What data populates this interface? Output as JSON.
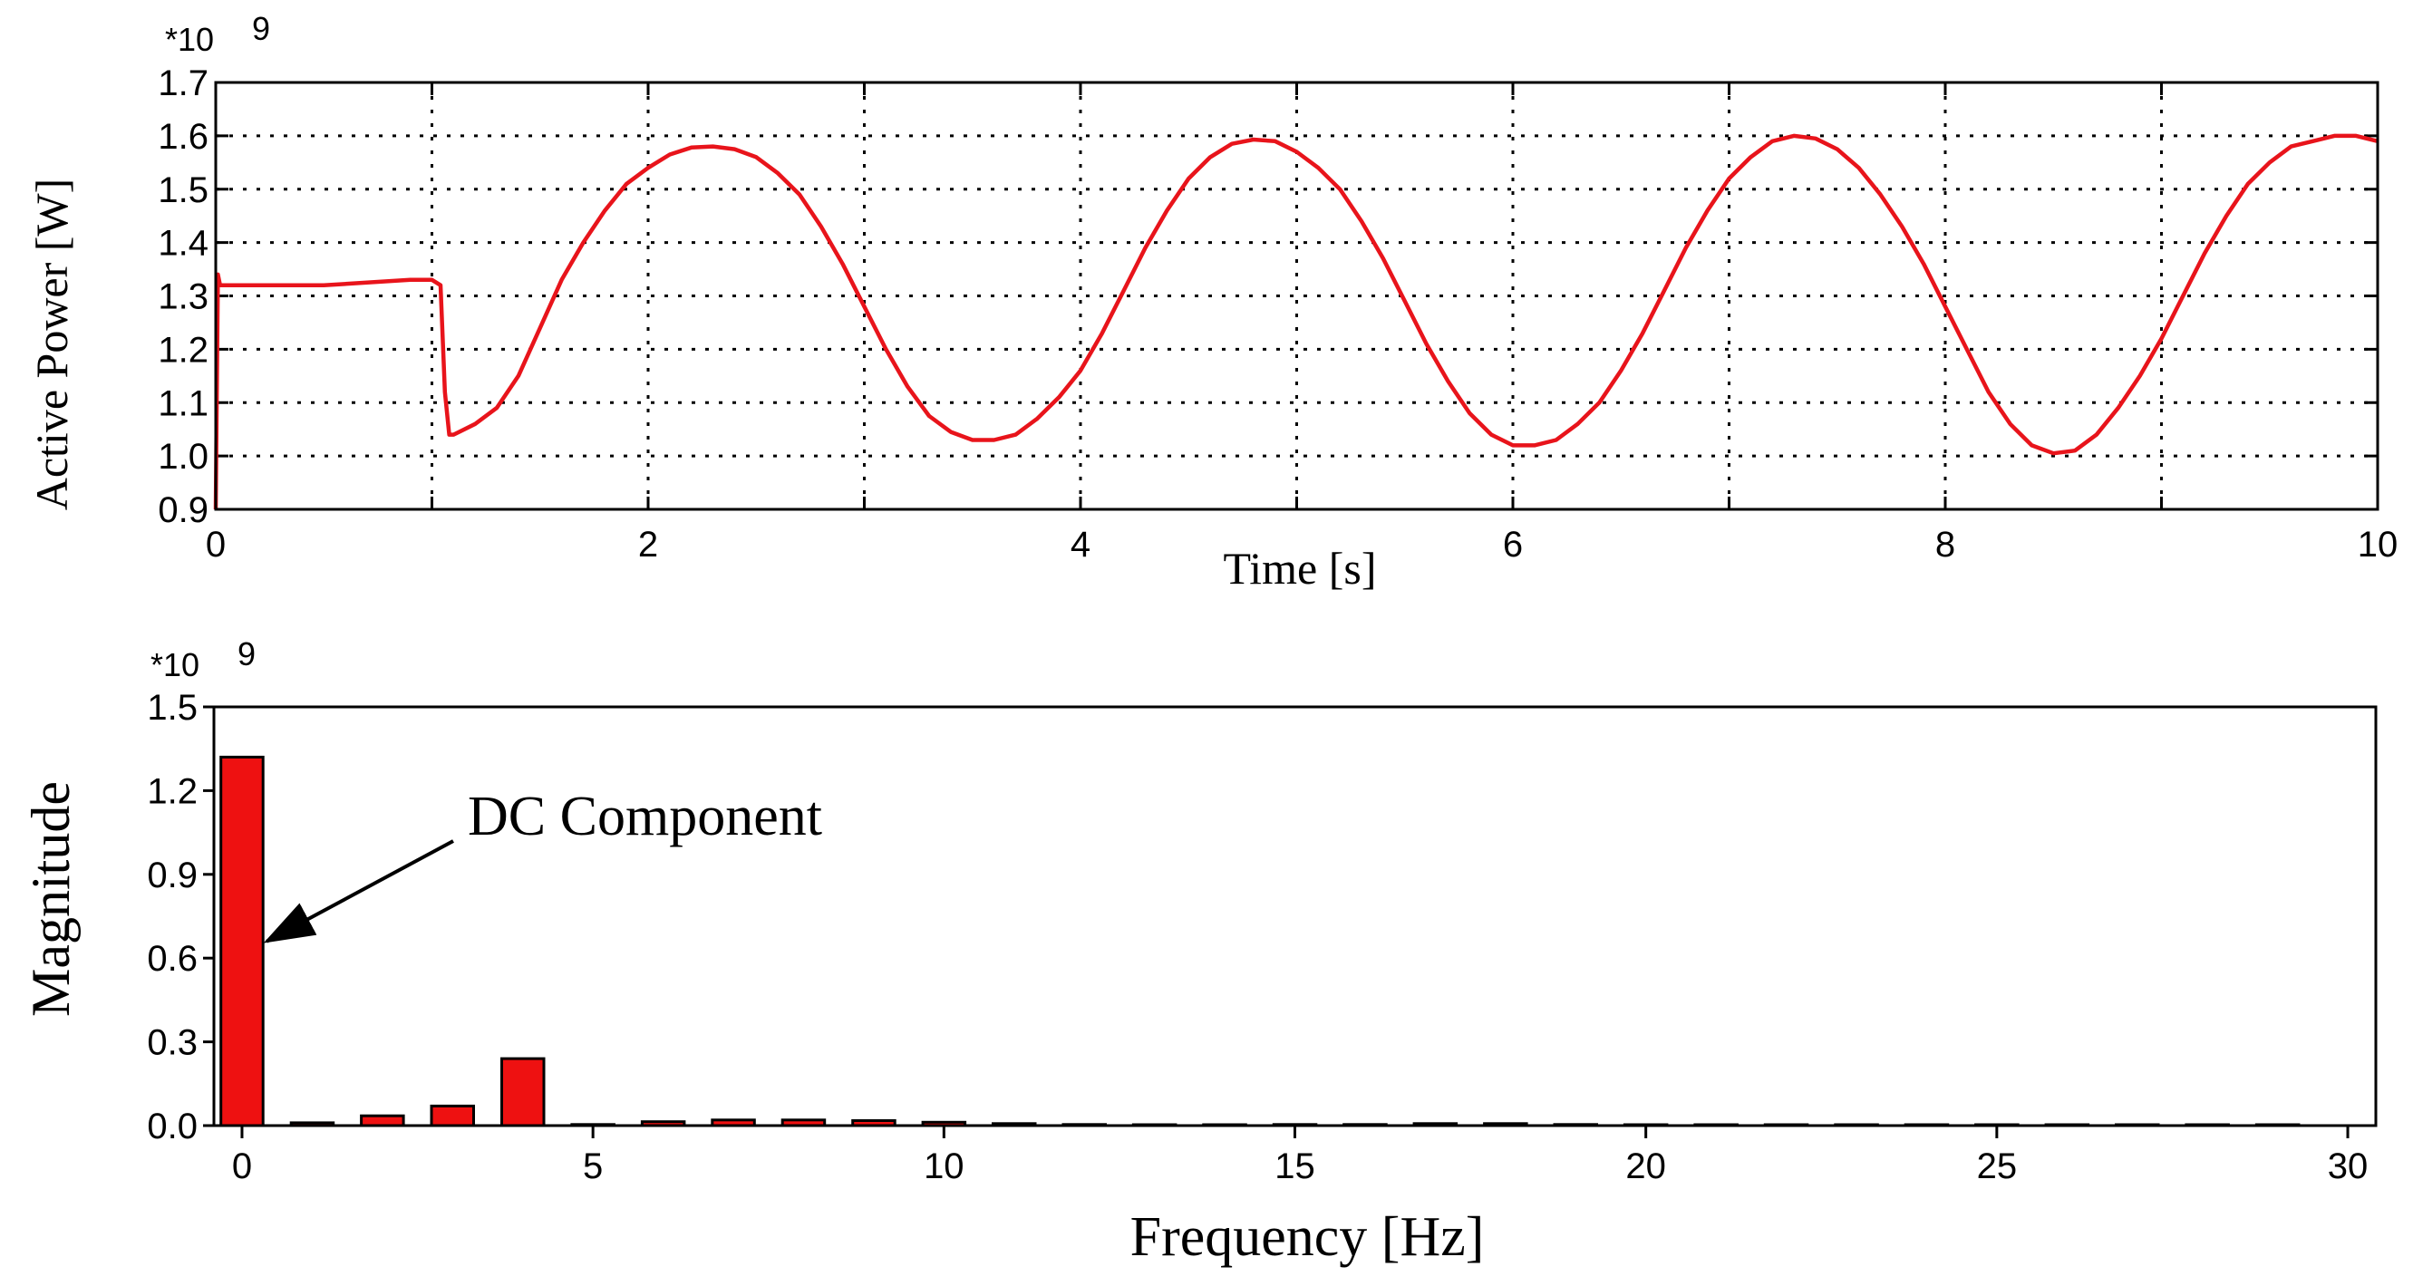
{
  "chart_data": [
    {
      "type": "line",
      "exponent_label": "*10",
      "exponent_power": "9",
      "xlabel": "Time [s]",
      "ylabel": "Active Power [W]",
      "xlim": [
        0,
        10
      ],
      "ylim": [
        0.9,
        1.7
      ],
      "xticks": [
        0,
        2,
        4,
        6,
        8,
        10
      ],
      "xtick_labels": [
        "0",
        "2",
        "4",
        "6",
        "8",
        "10"
      ],
      "x_minor_ticks": [
        1,
        3,
        5,
        7,
        9
      ],
      "yticks": [
        0.9,
        1.0,
        1.1,
        1.2,
        1.3,
        1.4,
        1.5,
        1.6,
        1.7
      ],
      "ytick_labels": [
        "0.9",
        "1.0",
        "1.1",
        "1.2",
        "1.3",
        "1.4",
        "1.5",
        "1.6",
        "1.7"
      ],
      "grid": true,
      "colors": {
        "series": "#e8141b"
      },
      "series": [
        {
          "x": [
            0.0,
            0.01,
            0.02,
            0.05,
            0.1,
            0.3,
            0.5,
            0.7,
            0.9,
            1.0,
            1.04,
            1.06,
            1.08,
            1.1,
            1.2,
            1.3,
            1.4,
            1.5,
            1.6,
            1.7,
            1.8,
            1.9,
            2.0,
            2.1,
            2.2,
            2.3,
            2.4,
            2.5,
            2.6,
            2.7,
            2.8,
            2.9,
            3.0,
            3.1,
            3.2,
            3.3,
            3.4,
            3.5,
            3.6,
            3.7,
            3.8,
            3.9,
            4.0,
            4.1,
            4.2,
            4.3,
            4.4,
            4.5,
            4.6,
            4.7,
            4.8,
            4.9,
            5.0,
            5.1,
            5.2,
            5.3,
            5.4,
            5.5,
            5.6,
            5.7,
            5.8,
            5.9,
            6.0,
            6.1,
            6.2,
            6.3,
            6.4,
            6.5,
            6.6,
            6.7,
            6.8,
            6.9,
            7.0,
            7.1,
            7.2,
            7.3,
            7.4,
            7.5,
            7.6,
            7.7,
            7.8,
            7.9,
            8.0,
            8.1,
            8.2,
            8.3,
            8.4,
            8.5,
            8.6,
            8.7,
            8.8,
            8.9,
            9.0,
            9.1,
            9.2,
            9.3,
            9.4,
            9.5,
            9.6,
            9.7,
            9.8,
            9.9,
            10.0
          ],
          "y": [
            0.9,
            1.34,
            1.32,
            1.32,
            1.32,
            1.32,
            1.32,
            1.325,
            1.33,
            1.33,
            1.32,
            1.12,
            1.04,
            1.04,
            1.06,
            1.09,
            1.15,
            1.24,
            1.33,
            1.4,
            1.46,
            1.51,
            1.54,
            1.565,
            1.578,
            1.58,
            1.575,
            1.56,
            1.53,
            1.49,
            1.43,
            1.36,
            1.28,
            1.2,
            1.13,
            1.075,
            1.045,
            1.03,
            1.03,
            1.04,
            1.07,
            1.11,
            1.16,
            1.23,
            1.31,
            1.39,
            1.46,
            1.52,
            1.56,
            1.585,
            1.593,
            1.59,
            1.57,
            1.54,
            1.5,
            1.44,
            1.37,
            1.29,
            1.21,
            1.14,
            1.08,
            1.04,
            1.02,
            1.02,
            1.03,
            1.06,
            1.1,
            1.16,
            1.23,
            1.31,
            1.39,
            1.46,
            1.52,
            1.56,
            1.59,
            1.6,
            1.595,
            1.575,
            1.54,
            1.49,
            1.43,
            1.36,
            1.28,
            1.2,
            1.12,
            1.06,
            1.02,
            1.005,
            1.01,
            1.04,
            1.09,
            1.15,
            1.22,
            1.3,
            1.38,
            1.45,
            1.51,
            1.55,
            1.58,
            1.59,
            1.6,
            1.6,
            1.59
          ]
        }
      ]
    },
    {
      "type": "bar",
      "exponent_label": "*10",
      "exponent_power": "9",
      "xlabel": "Frequency [Hz]",
      "ylabel": "Magnitude",
      "xlim": [
        -0.4,
        30.4
      ],
      "ylim": [
        0,
        1.5
      ],
      "xticks": [
        0,
        5,
        10,
        15,
        20,
        25,
        30
      ],
      "xtick_labels": [
        "0",
        "5",
        "10",
        "15",
        "20",
        "25",
        "30"
      ],
      "yticks": [
        0.0,
        0.3,
        0.6,
        0.9,
        1.2,
        1.5
      ],
      "ytick_labels": [
        "0.0",
        "0.3",
        "0.6",
        "0.9",
        "1.2",
        "1.5"
      ],
      "grid": false,
      "colors": {
        "bars": "#ee1111"
      },
      "categories": [
        0,
        1,
        2,
        3,
        4,
        5,
        6,
        7,
        8,
        9,
        10,
        11,
        12,
        13,
        14,
        15,
        16,
        17,
        18,
        19,
        20,
        21,
        22,
        23,
        24,
        25,
        26,
        27,
        28,
        29
      ],
      "values": [
        1.32,
        0.01,
        0.035,
        0.07,
        0.24,
        0.004,
        0.014,
        0.02,
        0.02,
        0.018,
        0.012,
        0.007,
        0.004,
        0.0,
        0.0,
        0.004,
        0.004,
        0.007,
        0.007,
        0.004,
        0.003,
        0.0,
        0.0,
        0.0,
        0.0,
        0.003,
        0.002,
        0.002,
        0.002,
        0.002
      ],
      "annotation": {
        "text": "DC Component",
        "target_category": 0
      }
    }
  ]
}
